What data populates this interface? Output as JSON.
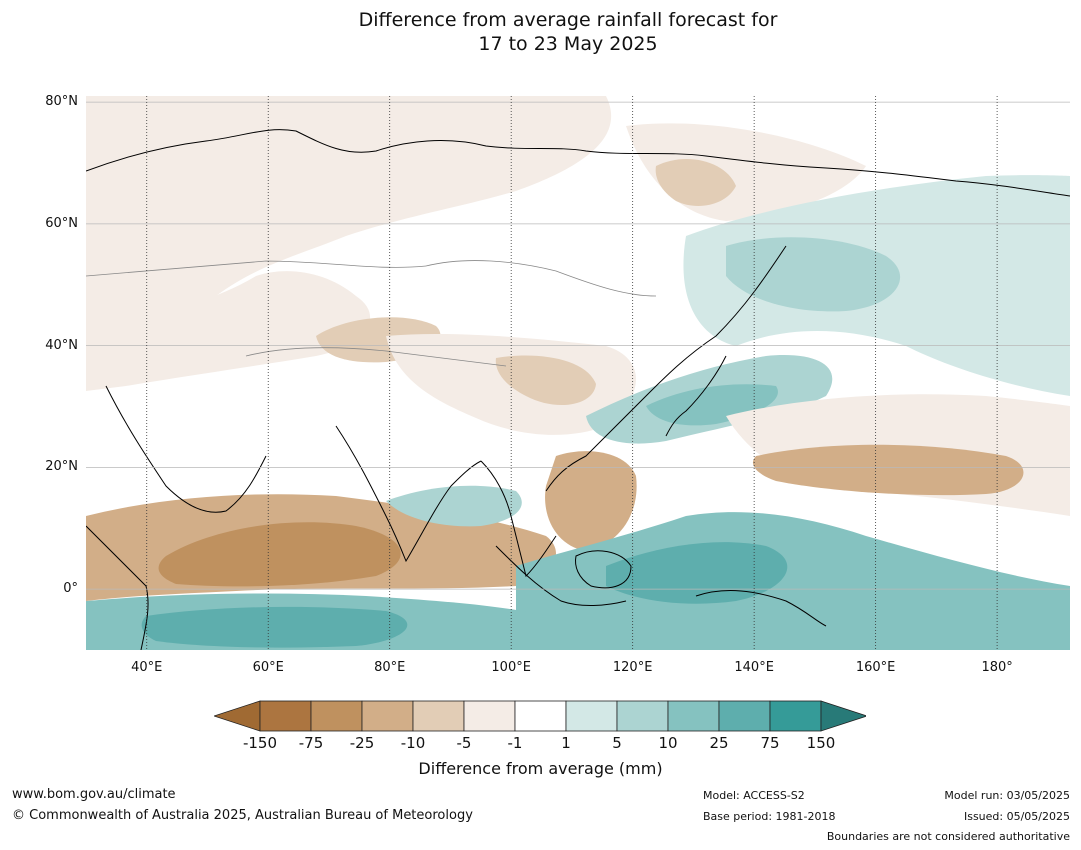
{
  "title": {
    "line1": "Difference from average rainfall forecast for",
    "line2": "17 to 23 May 2025"
  },
  "map": {
    "lat_labels": [
      "80°N",
      "60°N",
      "40°N",
      "20°N",
      "0°"
    ],
    "lon_labels": [
      "40°E",
      "60°E",
      "80°E",
      "100°E",
      "120°E",
      "140°E",
      "160°E",
      "180°"
    ],
    "lat_values": [
      80,
      60,
      40,
      20,
      0
    ],
    "lon_values": [
      40,
      60,
      80,
      100,
      120,
      140,
      160,
      180
    ],
    "extent": {
      "lon_min": 30,
      "lon_max": 192,
      "lat_min": -10,
      "lat_max": 81
    }
  },
  "colorbar": {
    "ticks": [
      "-150",
      "-75",
      "-25",
      "-10",
      "-5",
      "-1",
      "1",
      "5",
      "10",
      "25",
      "75",
      "150"
    ],
    "colors": [
      "#a06a33",
      "#ac7540",
      "#bf915f",
      "#d2ae88",
      "#e2cdb6",
      "#f4ece6",
      "#ffffff",
      "#d3e8e6",
      "#acd4d2",
      "#85c2c0",
      "#5eaead",
      "#359b98",
      "#287a78"
    ],
    "label": "Difference from average (mm)"
  },
  "footer": {
    "url": "www.bom.gov.au/climate",
    "copyright": "© Commonwealth of Australia 2025, Australian Bureau of Meteorology",
    "model": "Model: ACCESS-S2",
    "base_period": "Base period: 1981-2018",
    "model_run": "Model run: 03/05/2025",
    "issued": "Issued: 05/05/2025",
    "disclaimer": "Boundaries are not considered authoritative"
  }
}
